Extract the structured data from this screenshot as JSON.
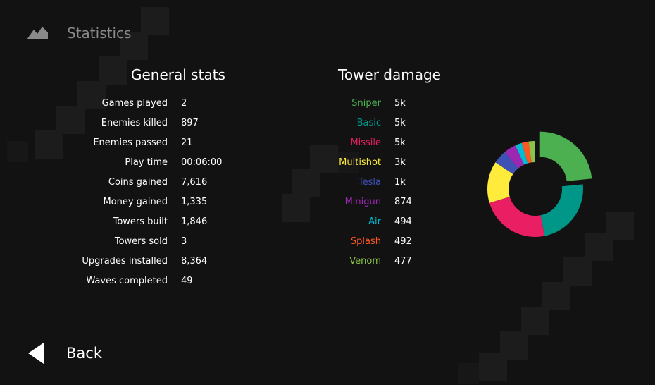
{
  "header": {
    "title": "Statistics",
    "icon": "mountain-icon"
  },
  "general_stats": {
    "title": "General stats",
    "rows": [
      {
        "label": "Games played",
        "value": "2"
      },
      {
        "label": "Enemies killed",
        "value": "897"
      },
      {
        "label": "Enemies passed",
        "value": "21"
      },
      {
        "label": "Play time",
        "value": "00:06:00"
      },
      {
        "label": "Coins gained",
        "value": "7,616"
      },
      {
        "label": "Money gained",
        "value": "1,335"
      },
      {
        "label": "Towers built",
        "value": "1,846"
      },
      {
        "label": "Towers sold",
        "value": "3"
      },
      {
        "label": "Upgrades installed",
        "value": "8,364"
      },
      {
        "label": "Waves completed",
        "value": "49"
      }
    ]
  },
  "tower_damage": {
    "title": "Tower damage",
    "rows": [
      {
        "label": "Sniper",
        "value": "5k",
        "color": "#4caf50"
      },
      {
        "label": "Basic",
        "value": "5k",
        "color": "#009688"
      },
      {
        "label": "Missile",
        "value": "5k",
        "color": "#e91e63"
      },
      {
        "label": "Multishot",
        "value": "3k",
        "color": "#ffeb3b"
      },
      {
        "label": "Tesla",
        "value": "1k",
        "color": "#3f51b5"
      },
      {
        "label": "Minigun",
        "value": "874",
        "color": "#9c27b0"
      },
      {
        "label": "Air",
        "value": "494",
        "color": "#00bcd4"
      },
      {
        "label": "Splash",
        "value": "492",
        "color": "#ff5722"
      },
      {
        "label": "Venom",
        "value": "477",
        "color": "#8bc34a"
      }
    ]
  },
  "chart_data": {
    "type": "pie",
    "categories": [
      "Sniper",
      "Basic",
      "Missile",
      "Multishot",
      "Tesla",
      "Minigun",
      "Air",
      "Splash",
      "Venom"
    ],
    "values": [
      5000,
      5000,
      5000,
      3000,
      1000,
      874,
      494,
      492,
      477
    ],
    "colors": [
      "#4caf50",
      "#009688",
      "#e91e63",
      "#ffeb3b",
      "#3f51b5",
      "#9c27b0",
      "#00bcd4",
      "#ff5722",
      "#8bc34a"
    ],
    "title": "",
    "donut": true
  },
  "back": {
    "label": "Back",
    "icon": "back-arrow-icon"
  }
}
